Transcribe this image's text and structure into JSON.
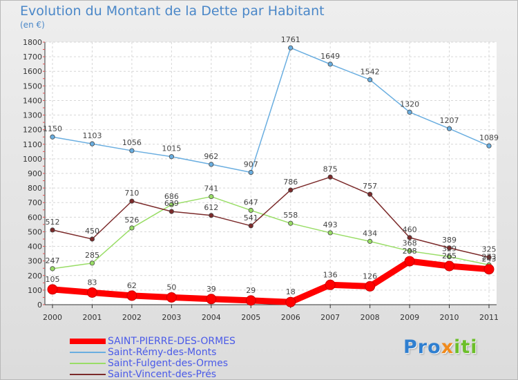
{
  "title": "Evolution du Montant de la Dette par Habitant",
  "subtitle": "(en €)",
  "logo": "Proxiti",
  "chart_data": {
    "type": "line",
    "x": [
      "2000",
      "2001",
      "2002",
      "2003",
      "2004",
      "2005",
      "2006",
      "2007",
      "2008",
      "2009",
      "2010",
      "2011"
    ],
    "ylim": [
      0,
      1800
    ],
    "yticks": [
      0,
      100,
      200,
      300,
      400,
      500,
      600,
      700,
      800,
      900,
      1000,
      1100,
      1200,
      1300,
      1400,
      1500,
      1600,
      1700,
      1800
    ],
    "grid": true,
    "legend_position": "bottom-left",
    "series": [
      {
        "name": "SAINT-PIERRE-DES-ORMES",
        "color": "#ff0000",
        "values": [
          105,
          83,
          62,
          50,
          39,
          29,
          18,
          136,
          126,
          298,
          265,
          243
        ],
        "labels": [
          "105",
          "83",
          "62",
          "50",
          "39",
          "29",
          "18",
          "136",
          "126",
          "298",
          "265",
          "243"
        ]
      },
      {
        "name": "Saint-Rémy-des-Monts",
        "color": "#6aaee0",
        "values": [
          1150,
          1103,
          1056,
          1015,
          962,
          907,
          1761,
          1649,
          1542,
          1320,
          1207,
          1089
        ],
        "labels": [
          "1150",
          "1103",
          "1056",
          "1015",
          "962",
          "907",
          "1761",
          "1649",
          "1542",
          "1320",
          "1207",
          "1089"
        ]
      },
      {
        "name": "Saint-Fulgent-des-Ormes",
        "color": "#99dd66",
        "values": [
          247,
          285,
          526,
          686,
          741,
          647,
          558,
          493,
          434,
          368,
          329,
          273
        ],
        "labels": [
          "247",
          "285",
          "526",
          "686",
          "741",
          "647",
          "558",
          "493",
          "434",
          "368",
          "329",
          "273"
        ]
      },
      {
        "name": "Saint-Vincent-des-Prés",
        "color": "#7b2a2a",
        "values": [
          512,
          450,
          710,
          639,
          612,
          541,
          786,
          875,
          757,
          460,
          389,
          325
        ],
        "labels": [
          "512",
          "450",
          "710",
          "639",
          "612",
          "541",
          "786",
          "875",
          "757",
          "460",
          "389",
          "325"
        ]
      }
    ]
  }
}
